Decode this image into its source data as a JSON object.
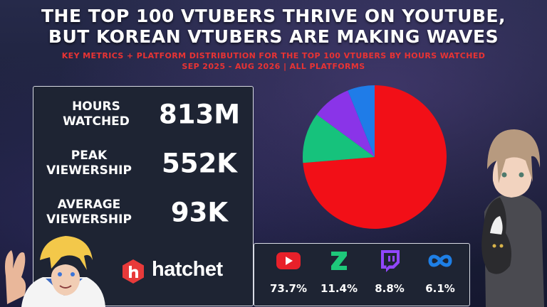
{
  "header": {
    "title_line1": "THE TOP 100 VTUBERS THRIVE ON YOUTUBE,",
    "title_line2": "BUT KOREAN VTUBERS ARE MAKING WAVES",
    "subtitle_line1": "KEY METRICS + PLATFORM DISTRIBUTION FOR THE TOP 100 VTUBERS BY HOURS WATCHED",
    "subtitle_line2": "SEP 2025 - AUG 2026 | ALL PLATFORMS"
  },
  "metrics": [
    {
      "label_line1": "HOURS",
      "label_line2": "WATCHED",
      "value": "813M"
    },
    {
      "label_line1": "PEAK",
      "label_line2": "VIEWERSHIP",
      "value": "552K"
    },
    {
      "label_line1": "AVERAGE",
      "label_line2": "VIEWERSHIP",
      "value": "93K"
    }
  ],
  "brand": {
    "name": "hatchet",
    "logo_icon": "hatchet-logo-icon"
  },
  "platforms": [
    {
      "icon": "youtube-icon",
      "share": "73.7%",
      "color": "#e8202a"
    },
    {
      "icon": "kick-icon",
      "share": "11.4%",
      "color": "#1ec87a"
    },
    {
      "icon": "twitch-icon",
      "share": "8.8%",
      "color": "#9146ff"
    },
    {
      "icon": "soop-icon",
      "share": "6.1%",
      "color": "#1e7fe6"
    }
  ],
  "chart_data": {
    "type": "pie",
    "title": "",
    "slices": [
      {
        "value": 73.7,
        "color": "#f20f17"
      },
      {
        "value": 11.4,
        "color": "#16c27c"
      },
      {
        "value": 8.8,
        "color": "#8a34e8"
      },
      {
        "value": 6.1,
        "color": "#1f7ce8"
      }
    ],
    "start_angle_deg": 0,
    "direction": "clockwise"
  }
}
